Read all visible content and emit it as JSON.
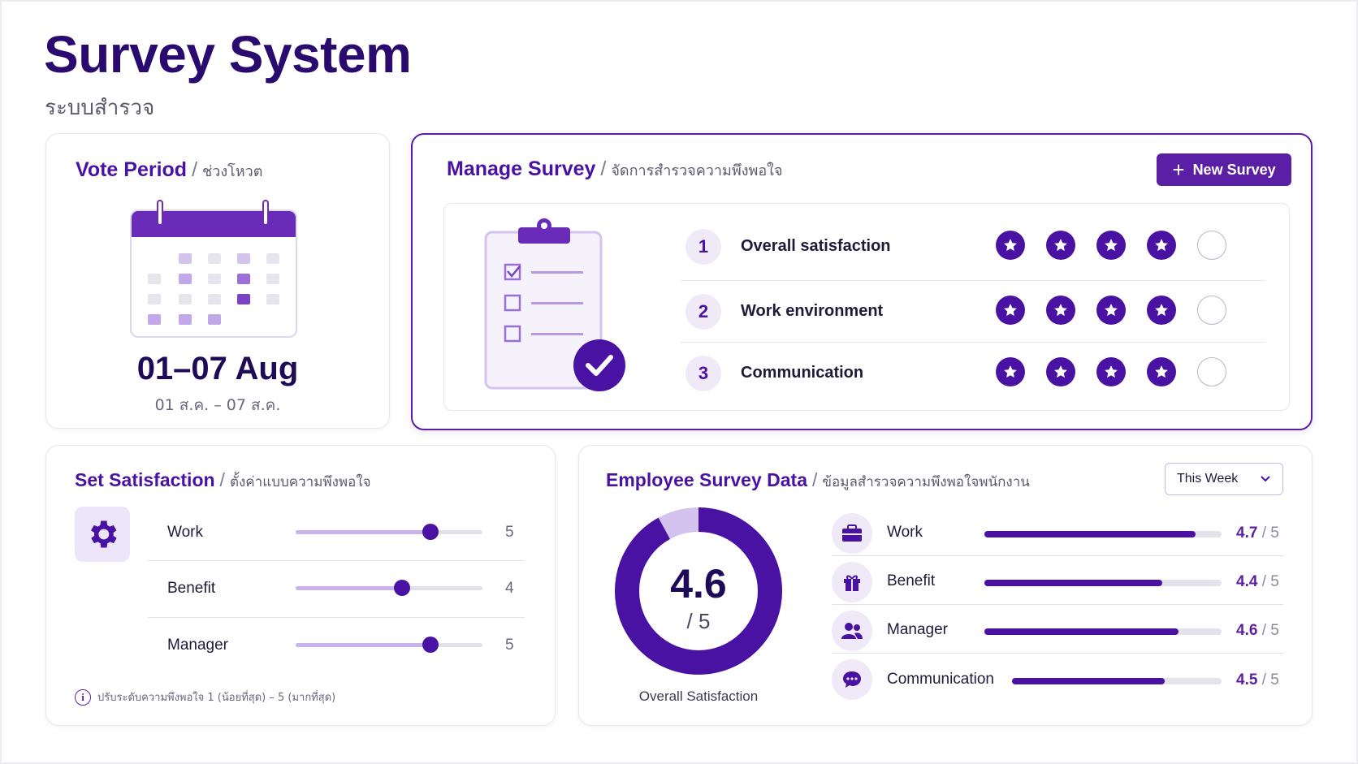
{
  "header": {
    "title": "Survey System",
    "subtitle": "ระบบสำรวจ"
  },
  "vote_period": {
    "title": "Vote Period",
    "title_th": "ช่วงโหวต",
    "date_range": "01–07 Aug",
    "date_range_th": "01 ส.ค. – 07 ส.ค."
  },
  "manage_survey": {
    "title": "Manage Survey",
    "title_th": "จัดการสำรวจความพึงพอใจ",
    "new_button": "New Survey",
    "questions": [
      {
        "num": "1",
        "label": "Overall satisfaction",
        "stars": 4,
        "max": 5
      },
      {
        "num": "2",
        "label": "Work environment",
        "stars": 4,
        "max": 5
      },
      {
        "num": "3",
        "label": "Communication",
        "stars": 4,
        "max": 5
      }
    ]
  },
  "set_satisfaction": {
    "title": "Set Satisfaction",
    "title_th": "ตั้งค่าแบบความพึงพอใจ",
    "items": [
      {
        "label": "Work",
        "value": "5"
      },
      {
        "label": "Benefit",
        "value": "4"
      },
      {
        "label": "Manager",
        "value": "5"
      }
    ],
    "note": "ปรับระดับความพึงพอใจ 1 (น้อยที่สุด) – 5 (มากที่สุด)"
  },
  "employee_data": {
    "title": "Employee Survey Data",
    "title_th": "ข้อมูลสำรวจความพึงพอใจพนักงาน",
    "period_select": "This Week",
    "overall": {
      "value": "4.6",
      "of": "/ 5",
      "label": "Overall Satisfaction"
    },
    "items": [
      {
        "label": "Work",
        "score": "4.7",
        "of": "/ 5",
        "icon": "briefcase-icon"
      },
      {
        "label": "Benefit",
        "score": "4.4",
        "of": "/ 5",
        "icon": "gift-icon"
      },
      {
        "label": "Manager",
        "score": "4.6",
        "of": "/ 5",
        "icon": "people-icon"
      },
      {
        "label": "Communication",
        "score": "4.5",
        "of": "/ 5",
        "icon": "chat-icon"
      }
    ]
  },
  "colors": {
    "primary": "#4a12a3",
    "accent": "#5b1fa6",
    "light": "#efe9f8"
  }
}
